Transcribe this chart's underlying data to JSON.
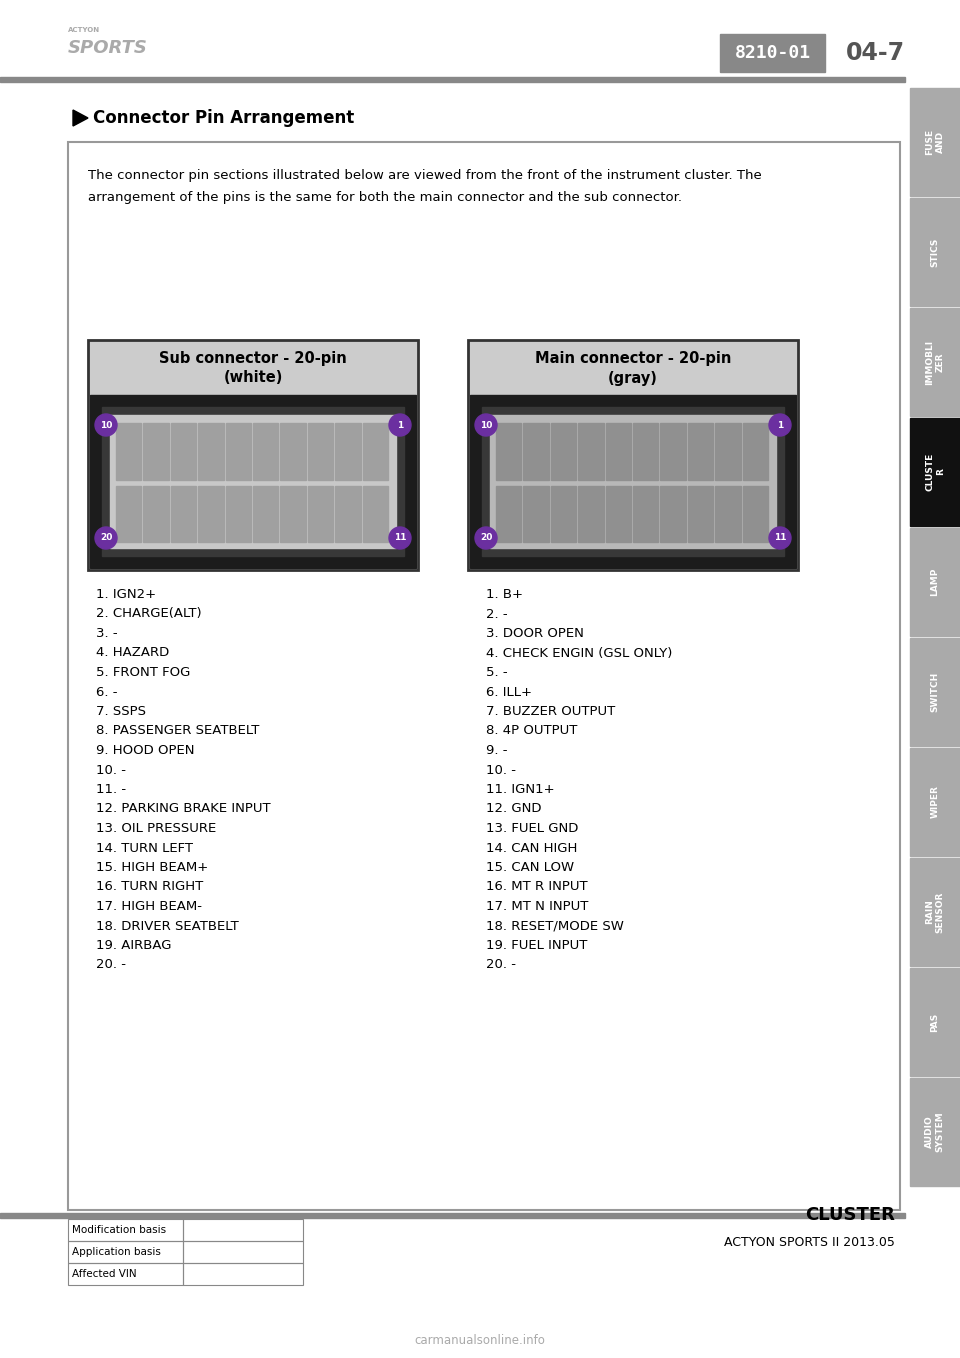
{
  "page_code": "8210-01",
  "page_num": "04-7",
  "header_title": "Connector Pin Arrangement",
  "body_text_line1": "The connector pin sections illustrated below are viewed from the front of the instrument cluster. The",
  "body_text_line2": "arrangement of the pins is the same for both the main connector and the sub connector.",
  "sub_title_line1": "Sub connector - 20-pin",
  "sub_title_line2": "(white)",
  "main_title_line1": "Main connector - 20-pin",
  "main_title_line2": "(gray)",
  "sub_pins": [
    "1. IGN2+",
    "2. CHARGE(ALT)",
    "3. -",
    "4. HAZARD",
    "5. FRONT FOG",
    "6. -",
    "7. SSPS",
    "8. PASSENGER SEATBELT",
    "9. HOOD OPEN",
    "10. -",
    "11. -",
    "12. PARKING BRAKE INPUT",
    "13. OIL PRESSURE",
    "14. TURN LEFT",
    "15. HIGH BEAM+",
    "16. TURN RIGHT",
    "17. HIGH BEAM-",
    "18. DRIVER SEATBELT",
    "19. AIRBAG",
    "20. -"
  ],
  "main_pins": [
    "1. B+",
    "2. -",
    "3. DOOR OPEN",
    "4. CHECK ENGIN (GSL ONLY)",
    "5. -",
    "6. ILL+",
    "7. BUZZER OUTPUT",
    "8. 4P OUTPUT",
    "9. -",
    "10. -",
    "11. IGN1+",
    "12. GND",
    "13. FUEL GND",
    "14. CAN HIGH",
    "15. CAN LOW",
    "16. MT R INPUT",
    "17. MT N INPUT",
    "18. RESET/MODE SW",
    "19. FUEL INPUT",
    "20. -"
  ],
  "sidebar_items": [
    "FUSE\nAND",
    "STICS",
    "IMMOBLI\nZER",
    "CLUSTE\nR",
    "LAMP",
    "SWITCH",
    "WIPER",
    "RAIN\nSENSOR",
    "PAS",
    "AUDIO\nSYSTEM"
  ],
  "sidebar_active": 3,
  "footer_left": [
    "Modification basis",
    "Application basis",
    "Affected VIN"
  ],
  "footer_right_line1": "CLUSTER",
  "footer_right_line2": "ACTYON SPORTS II 2013.05",
  "watermark": "carmanualsonline.info",
  "logo_line1": "ACTYON",
  "logo_line2": "SPORTS",
  "bg_color": "#ffffff",
  "sidebar_color": "#aaaaaa",
  "sidebar_active_color": "#111111",
  "box_border_color": "#555555",
  "pin_circle_color": "#6b2fa0",
  "header_line_color": "#888888",
  "content_border_color": "#999999"
}
